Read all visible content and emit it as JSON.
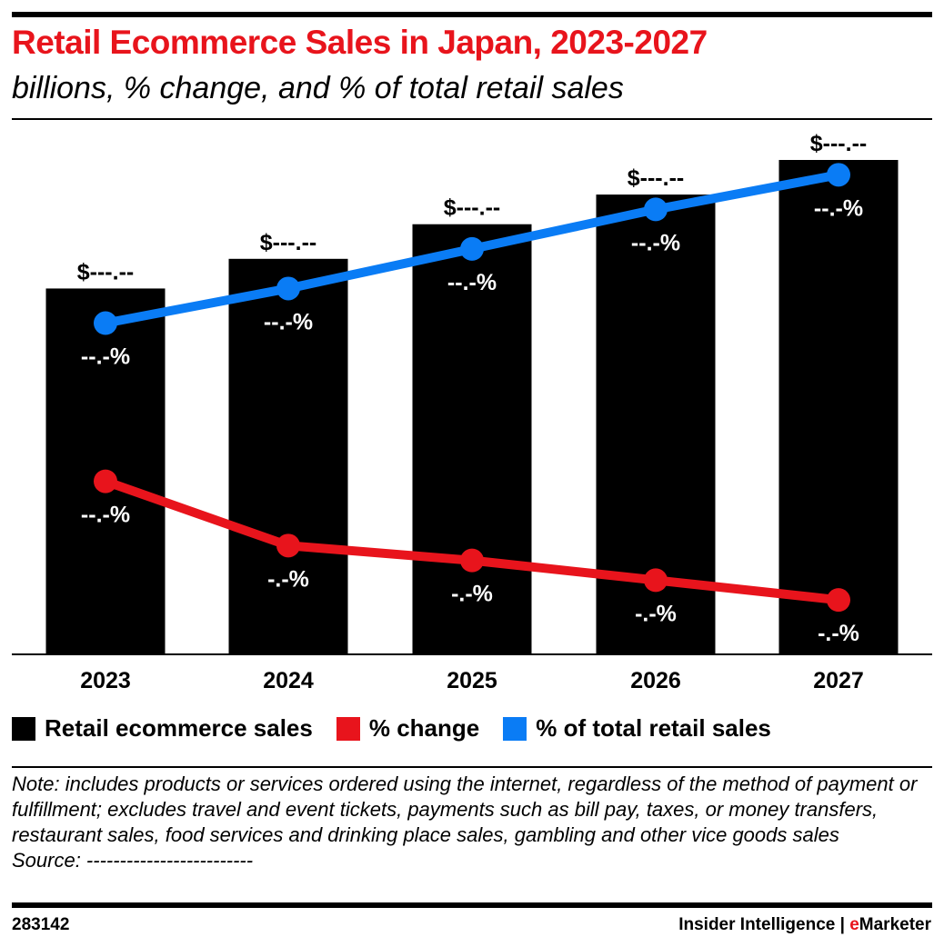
{
  "title": "Retail Ecommerce Sales in Japan, 2023-2027",
  "subtitle": "billions, % change, and % of total retail sales",
  "chart_data": {
    "type": "bar",
    "categories": [
      "2023",
      "2024",
      "2025",
      "2026",
      "2027"
    ],
    "ylim": [
      0,
      105
    ],
    "grid": false,
    "legend_position": "bottom",
    "series": [
      {
        "name": "Retail ecommerce sales",
        "kind": "bar",
        "color": "#000000",
        "values": [
          74,
          80,
          87,
          93,
          100
        ],
        "labels": [
          "$---.--",
          "$---.--",
          "$---.--",
          "$---.--",
          "$---.--"
        ]
      },
      {
        "name": "% change",
        "kind": "line",
        "color": "#e8141c",
        "values": [
          35,
          22,
          19,
          15,
          11
        ],
        "labels": [
          "--.-%",
          "-.-%",
          "-.-%",
          "-.-%",
          "-.-%"
        ]
      },
      {
        "name": "% of total retail sales",
        "kind": "line",
        "color": "#0a7cf5",
        "values": [
          67,
          74,
          82,
          90,
          97
        ],
        "labels": [
          "--.-%",
          "--.-%",
          "--.-%",
          "--.-%",
          "--.-%"
        ]
      }
    ]
  },
  "note": "Note: includes products or services ordered using the internet, regardless of the method of payment or fulfillment; excludes travel and event tickets, payments such as bill pay, taxes, or money transfers, restaurant sales, food services and drinking place sales, gambling and other vice goods sales",
  "source": "Source: -------------------------",
  "footer": {
    "id": "283142",
    "brand_prefix": "Insider Intelligence | ",
    "brand_e": "e",
    "brand_rest": "Marketer"
  }
}
